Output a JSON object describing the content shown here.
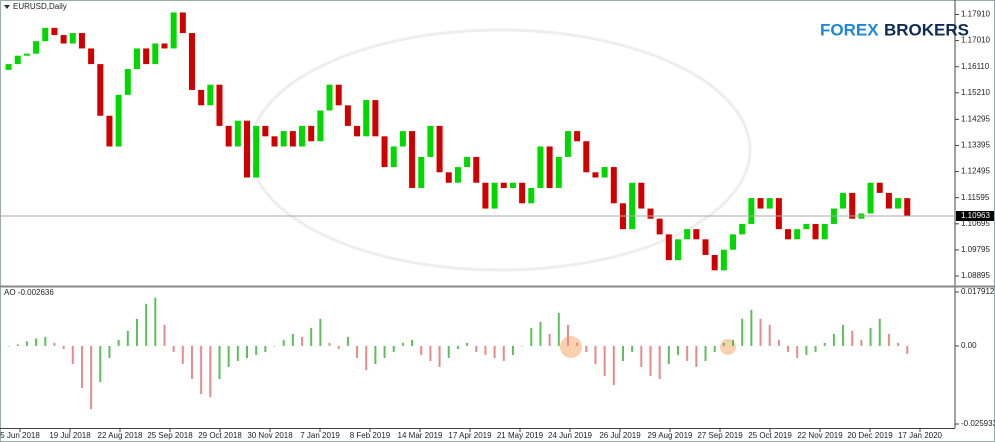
{
  "chart_data": [
    {
      "type": "candlestick",
      "title": "EURUSD,Daily",
      "open": [
        1.16,
        1.162,
        1.1649,
        1.1656,
        1.1699,
        1.1745,
        1.172,
        1.1691,
        1.1727,
        1.1674,
        1.162,
        1.1442,
        1.1336,
        1.1514,
        1.1603,
        1.1674,
        1.162,
        1.1691,
        1.1674,
        1.1798,
        1.1727,
        1.1531,
        1.1478,
        1.1549,
        1.1407,
        1.1336,
        1.1425,
        1.1229,
        1.1407,
        1.1371,
        1.1336,
        1.1389,
        1.1336,
        1.1407,
        1.1354,
        1.146,
        1.1549,
        1.1478,
        1.1407,
        1.1371,
        1.1496,
        1.1371,
        1.1265,
        1.1336,
        1.1389,
        1.1193,
        1.13,
        1.1407,
        1.1247,
        1.1211,
        1.1265,
        1.13,
        1.1211,
        1.1122,
        1.1211,
        1.1193,
        1.1211,
        1.114,
        1.1193,
        1.1336,
        1.1193,
        1.13,
        1.1389,
        1.1354,
        1.1247,
        1.1229,
        1.1265,
        1.114,
        1.1051,
        1.1211,
        1.1122,
        1.1087,
        1.1033,
        1.0944,
        1.1016,
        1.1051,
        1.1016,
        1.0962,
        1.0909,
        1.098,
        1.1033,
        1.1069,
        1.1158,
        1.1122,
        1.1158,
        1.1051,
        1.1016,
        1.1051,
        1.1069,
        1.1016,
        1.1069,
        1.1122,
        1.1176,
        1.1087,
        1.1105,
        1.1211,
        1.1176,
        1.1122,
        1.1158
      ],
      "close": [
        1.162,
        1.1649,
        1.1656,
        1.1699,
        1.1745,
        1.172,
        1.1691,
        1.1727,
        1.1674,
        1.162,
        1.1442,
        1.1336,
        1.1514,
        1.1603,
        1.1674,
        1.162,
        1.1691,
        1.1674,
        1.1798,
        1.1727,
        1.1531,
        1.1478,
        1.1549,
        1.1407,
        1.1336,
        1.1425,
        1.1229,
        1.1407,
        1.1371,
        1.1336,
        1.1389,
        1.1336,
        1.1407,
        1.1354,
        1.146,
        1.1549,
        1.1478,
        1.1407,
        1.1371,
        1.1496,
        1.1371,
        1.1265,
        1.1336,
        1.1389,
        1.1193,
        1.13,
        1.1407,
        1.1247,
        1.1211,
        1.1265,
        1.13,
        1.1211,
        1.1122,
        1.1211,
        1.1193,
        1.1211,
        1.114,
        1.1193,
        1.1336,
        1.1193,
        1.13,
        1.1389,
        1.1354,
        1.1247,
        1.1229,
        1.1265,
        1.114,
        1.1051,
        1.1211,
        1.1122,
        1.1087,
        1.1033,
        1.0944,
        1.1016,
        1.1051,
        1.1016,
        1.0962,
        1.0909,
        1.098,
        1.1033,
        1.1069,
        1.1158,
        1.1122,
        1.1158,
        1.1051,
        1.1016,
        1.1051,
        1.1069,
        1.1016,
        1.1069,
        1.1122,
        1.1176,
        1.1087,
        1.1105,
        1.1211,
        1.1176,
        1.1122,
        1.1158,
        1.10963
      ],
      "up_color": "#00d800",
      "down_color": "#d00000",
      "ylim": [
        1.0855,
        1.1841
      ],
      "yticks": [
        {
          "value": 1.1791,
          "label": "1.17910"
        },
        {
          "value": 1.1701,
          "label": "1.17010"
        },
        {
          "value": 1.1611,
          "label": "1.16110"
        },
        {
          "value": 1.1521,
          "label": "1.15210"
        },
        1.14295,
        1.13395,
        1.12495,
        1.11595,
        1.10695,
        1.09795,
        1.08895
      ],
      "last_price": 1.10963,
      "x_labels": [
        "5 Jun 2018",
        "19 Jul 2018",
        "22 Aug 2018",
        "25 Sep 2018",
        "29 Oct 2018",
        "30 Nov 2018",
        "7 Jan 2019",
        "8 Feb 2019",
        "14 Mar 2019",
        "17 Apr 2019",
        "21 May 2019",
        "24 Jun 2019",
        "26 Jul 2019",
        "29 Aug 2019",
        "27 Sep 2019",
        "25 Oct 2019",
        "22 Nov 2019",
        "20 Dec 2019",
        "17 Jan 2020"
      ]
    },
    {
      "type": "histogram",
      "title": "AO -0.002636",
      "values": [
        0.0,
        0.0005,
        0.0015,
        0.0025,
        0.003,
        0.001,
        -0.001,
        -0.006,
        -0.014,
        -0.021,
        -0.012,
        -0.004,
        0.002,
        0.005,
        0.009,
        0.014,
        0.016,
        0.007,
        -0.002,
        -0.006,
        -0.011,
        -0.016,
        -0.017,
        -0.011,
        -0.007,
        -0.005,
        -0.004,
        -0.003,
        -0.002,
        0.0,
        0.002,
        0.004,
        0.003,
        0.006,
        0.009,
        0.001,
        -0.001,
        0.003,
        -0.004,
        -0.008,
        -0.006,
        -0.004,
        -0.002,
        0.001,
        0.002,
        -0.003,
        -0.005,
        -0.007,
        -0.004,
        -0.001,
        0.001,
        -0.002,
        -0.003,
        -0.004,
        -0.005,
        -0.003,
        0.0,
        0.006,
        0.008,
        0.004,
        0.011,
        0.007,
        0.001,
        -0.002,
        -0.006,
        -0.01,
        -0.013,
        -0.005,
        -0.002,
        -0.007,
        -0.01,
        -0.011,
        -0.006,
        -0.003,
        -0.005,
        -0.007,
        -0.005,
        -0.002,
        0.001,
        0.002,
        0.009,
        0.012,
        0.009,
        0.007,
        0.002,
        -0.002,
        -0.004,
        -0.003,
        -0.002,
        0.001,
        0.004,
        0.007,
        0.005,
        0.002,
        0.006,
        0.009,
        0.004,
        0.001,
        -0.002636
      ],
      "up_color": "#5cbf5c",
      "down_color": "#e88a8a",
      "ylim": [
        -0.02726,
        0.01924
      ],
      "yticks": [
        0.017912,
        {
          "value": 0,
          "label": "0.00"
        },
        -0.025933
      ]
    }
  ],
  "logo": {
    "left": "FOREX",
    "right": "BROKERS"
  }
}
